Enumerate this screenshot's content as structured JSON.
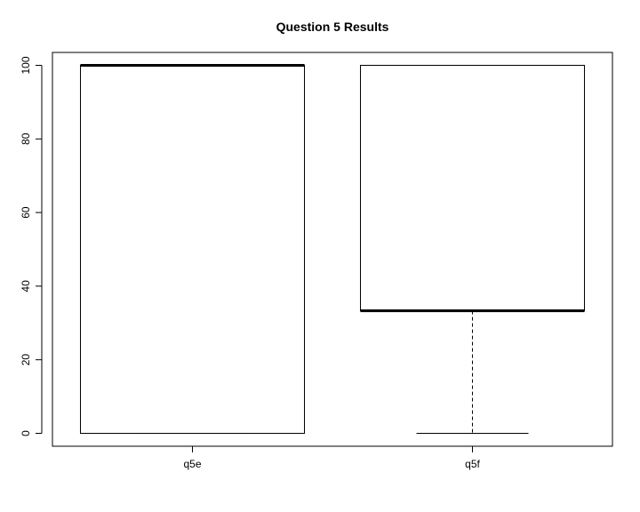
{
  "chart_data": {
    "type": "boxplot",
    "title": "Question 5 Results",
    "xlabel": "",
    "ylabel": "",
    "ylim": [
      -3.5,
      103.5
    ],
    "yticks": [
      0,
      20,
      40,
      60,
      80,
      100
    ],
    "grid": false,
    "categories": [
      "q5e",
      "q5f"
    ],
    "boxes": [
      {
        "name": "q5e",
        "whisker_low": 0,
        "q1": 0,
        "median": 100,
        "q3": 100,
        "whisker_high": 100
      },
      {
        "name": "q5f",
        "whisker_low": 0,
        "q1": 33.3,
        "median": 33.3,
        "q3": 100,
        "whisker_high": 100
      }
    ]
  }
}
